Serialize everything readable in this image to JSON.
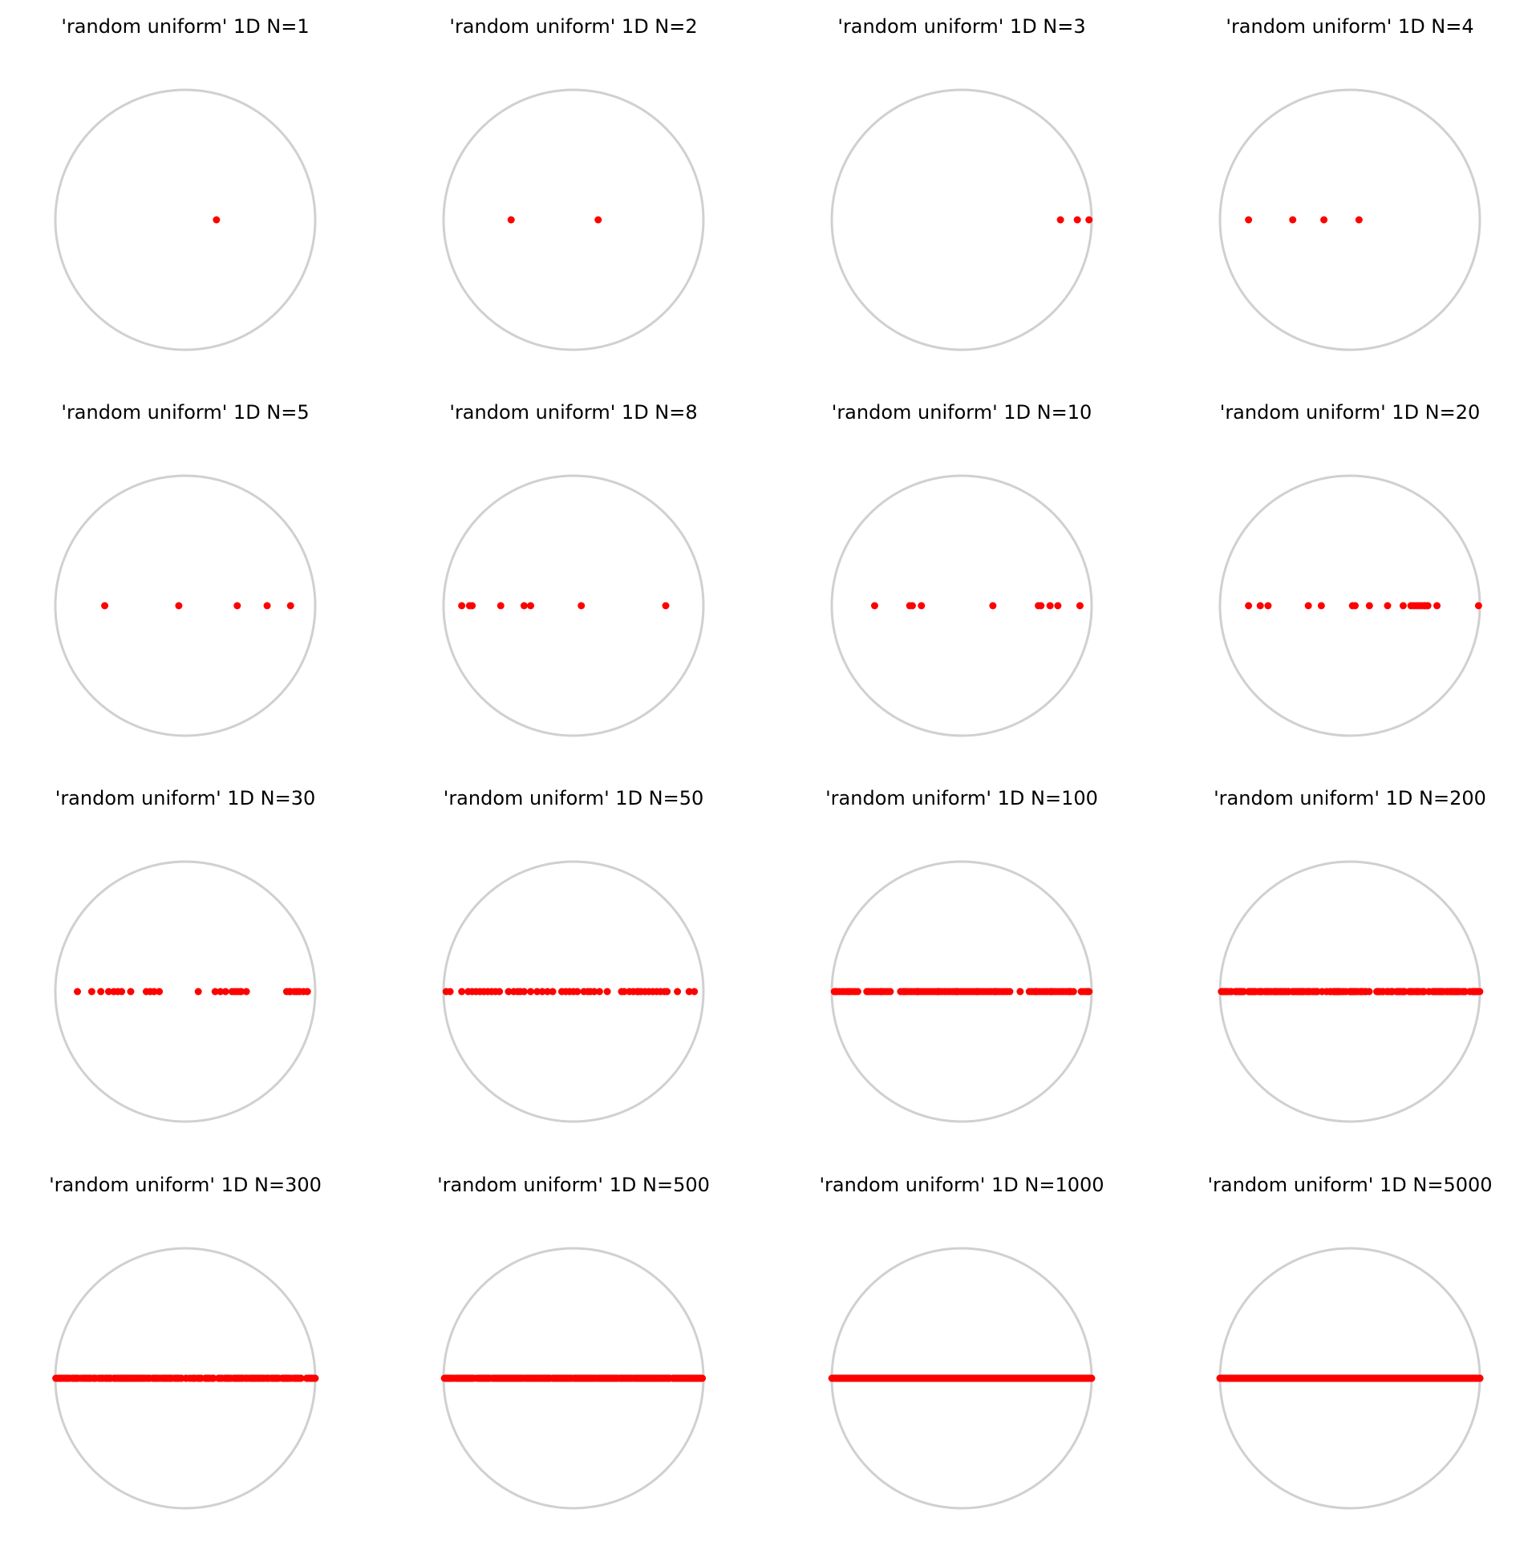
{
  "figure": {
    "colors": {
      "circle": "#d0d0d0",
      "points": "#ff0000",
      "background": "#ffffff"
    }
  },
  "chart_data": [
    {
      "type": "scatter",
      "title": "'random uniform' 1D N=1",
      "n": 1,
      "grid": false,
      "axes_visible": false,
      "xlim": [
        -1,
        1
      ],
      "ylim": [
        -1,
        1
      ],
      "x": [
        0.24
      ]
    },
    {
      "type": "scatter",
      "title": "'random uniform' 1D N=2",
      "n": 2,
      "grid": false,
      "axes_visible": false,
      "xlim": [
        -1,
        1
      ],
      "ylim": [
        -1,
        1
      ],
      "x": [
        -0.48,
        0.19
      ]
    },
    {
      "type": "scatter",
      "title": "'random uniform' 1D N=3",
      "n": 3,
      "grid": false,
      "axes_visible": false,
      "xlim": [
        -1,
        1
      ],
      "ylim": [
        -1,
        1
      ],
      "x": [
        0.76,
        0.89,
        0.98
      ]
    },
    {
      "type": "scatter",
      "title": "'random uniform' 1D N=4",
      "n": 4,
      "grid": false,
      "axes_visible": false,
      "xlim": [
        -1,
        1
      ],
      "ylim": [
        -1,
        1
      ],
      "x": [
        -0.78,
        -0.44,
        -0.2,
        0.07
      ]
    },
    {
      "type": "scatter",
      "title": "'random uniform' 1D N=5",
      "n": 5,
      "grid": false,
      "axes_visible": false,
      "xlim": [
        -1,
        1
      ],
      "ylim": [
        -1,
        1
      ],
      "x": [
        -0.62,
        -0.05,
        0.4,
        0.63,
        0.81
      ]
    },
    {
      "type": "scatter",
      "title": "'random uniform' 1D N=8",
      "n": 8,
      "grid": false,
      "axes_visible": false,
      "xlim": [
        -1,
        1
      ],
      "ylim": [
        -1,
        1
      ],
      "x": [
        -0.86,
        -0.8,
        -0.78,
        -0.56,
        -0.38,
        -0.33,
        0.06,
        0.71
      ]
    },
    {
      "type": "scatter",
      "title": "'random uniform' 1D N=10",
      "n": 10,
      "grid": false,
      "axes_visible": false,
      "xlim": [
        -1,
        1
      ],
      "ylim": [
        -1,
        1
      ],
      "x": [
        -0.67,
        -0.4,
        -0.38,
        -0.31,
        0.24,
        0.59,
        0.61,
        0.68,
        0.74,
        0.91
      ]
    },
    {
      "type": "scatter",
      "title": "'random uniform' 1D N=20",
      "n": 20,
      "grid": false,
      "axes_visible": false,
      "xlim": [
        -1,
        1
      ],
      "ylim": [
        -1,
        1
      ],
      "x": [
        -0.78,
        -0.69,
        -0.63,
        -0.32,
        -0.22,
        0.02,
        0.04,
        0.15,
        0.29,
        0.41,
        0.47,
        0.49,
        0.51,
        0.53,
        0.55,
        0.57,
        0.58,
        0.6,
        0.67,
        0.99
      ]
    },
    {
      "type": "scatter",
      "title": "'random uniform' 1D N=30",
      "n": 30,
      "grid": false,
      "axes_visible": false,
      "xlim": [
        -1,
        1
      ],
      "ylim": [
        -1,
        1
      ],
      "x": [
        -0.83,
        -0.72,
        -0.65,
        -0.59,
        -0.55,
        -0.52,
        -0.49,
        -0.42,
        -0.3,
        -0.27,
        -0.24,
        -0.2,
        0.1,
        0.23,
        0.27,
        0.31,
        0.36,
        0.38,
        0.4,
        0.43,
        0.47,
        0.78,
        0.81,
        0.84,
        0.86,
        0.88,
        0.94,
        0.91,
        0.8,
        0.42
      ]
    },
    {
      "type": "scatter",
      "title": "'random uniform' 1D N=50",
      "n": 50,
      "grid": false,
      "axes_visible": false,
      "xlim": [
        -1,
        1
      ],
      "ylim": [
        -1,
        1
      ],
      "x": [
        -0.98,
        -0.86,
        -0.81,
        -0.78,
        -0.75,
        -0.72,
        -0.69,
        -0.66,
        -0.63,
        -0.6,
        -0.5,
        -0.46,
        -0.43,
        -0.38,
        -0.33,
        -0.28,
        -0.24,
        -0.16,
        -0.09,
        -0.06,
        -0.03,
        0.0,
        0.03,
        0.11,
        0.16,
        0.2,
        0.26,
        0.39,
        0.43,
        0.46,
        0.49,
        0.52,
        0.55,
        0.58,
        0.61,
        0.64,
        0.67,
        0.72,
        0.89,
        0.93,
        -0.95,
        -0.57,
        -0.41,
        0.08,
        0.37,
        0.7,
        0.13,
        -0.2,
        0.5,
        0.8
      ]
    },
    {
      "type": "scatter",
      "title": "'random uniform' 1D N=100",
      "n": 100,
      "grid": false,
      "axes_visible": false,
      "xlim": [
        -1,
        1
      ],
      "ylim": [
        -1,
        1
      ],
      "x": [
        -0.98,
        -0.96,
        -0.94,
        -0.92,
        -0.9,
        -0.88,
        -0.86,
        -0.84,
        -0.82,
        -0.8,
        -0.73,
        -0.71,
        -0.69,
        -0.67,
        -0.65,
        -0.63,
        -0.61,
        -0.59,
        -0.57,
        -0.55,
        -0.47,
        -0.45,
        -0.43,
        -0.41,
        -0.39,
        -0.37,
        -0.35,
        -0.33,
        -0.31,
        -0.29,
        -0.27,
        -0.25,
        -0.23,
        -0.21,
        -0.19,
        -0.17,
        -0.15,
        -0.13,
        -0.11,
        -0.09,
        -0.07,
        -0.05,
        -0.03,
        -0.01,
        0.01,
        0.03,
        0.05,
        0.07,
        0.09,
        0.11,
        0.13,
        0.15,
        0.17,
        0.19,
        0.21,
        0.23,
        0.25,
        0.27,
        0.29,
        0.31,
        0.33,
        0.35,
        0.37,
        0.45,
        0.52,
        0.54,
        0.56,
        0.58,
        0.6,
        0.62,
        0.64,
        0.66,
        0.68,
        0.7,
        0.72,
        0.74,
        0.76,
        0.78,
        0.8,
        0.82,
        0.84,
        0.86,
        0.92,
        0.94,
        0.96,
        0.98,
        -0.97,
        -0.87,
        -0.72,
        -0.62,
        -0.44,
        -0.34,
        -0.18,
        -0.04,
        0.12,
        0.26,
        0.57,
        0.69,
        0.83,
        0.97
      ]
    },
    {
      "type": "scatter",
      "title": "'random uniform' 1D N=200",
      "n": 200,
      "grid": false,
      "axes_visible": false,
      "xlim": [
        -1,
        1
      ],
      "ylim": [
        -1,
        1
      ],
      "range": [
        -1,
        1
      ],
      "note_points": "dense random uniform points along the diameter"
    },
    {
      "type": "scatter",
      "title": "'random uniform' 1D N=300",
      "n": 300,
      "grid": false,
      "axes_visible": false,
      "xlim": [
        -1,
        1
      ],
      "ylim": [
        -1,
        1
      ],
      "range": [
        -1,
        1
      ]
    },
    {
      "type": "scatter",
      "title": "'random uniform' 1D N=500",
      "n": 500,
      "grid": false,
      "axes_visible": false,
      "xlim": [
        -1,
        1
      ],
      "ylim": [
        -1,
        1
      ],
      "range": [
        -1,
        1
      ]
    },
    {
      "type": "scatter",
      "title": "'random uniform' 1D N=1000",
      "n": 1000,
      "grid": false,
      "axes_visible": false,
      "xlim": [
        -1,
        1
      ],
      "ylim": [
        -1,
        1
      ],
      "range": [
        -1,
        1
      ]
    },
    {
      "type": "scatter",
      "title": "'random uniform' 1D N=5000",
      "n": 5000,
      "grid": false,
      "axes_visible": false,
      "xlim": [
        -1,
        1
      ],
      "ylim": [
        -1,
        1
      ],
      "range": [
        -1,
        1
      ]
    }
  ]
}
